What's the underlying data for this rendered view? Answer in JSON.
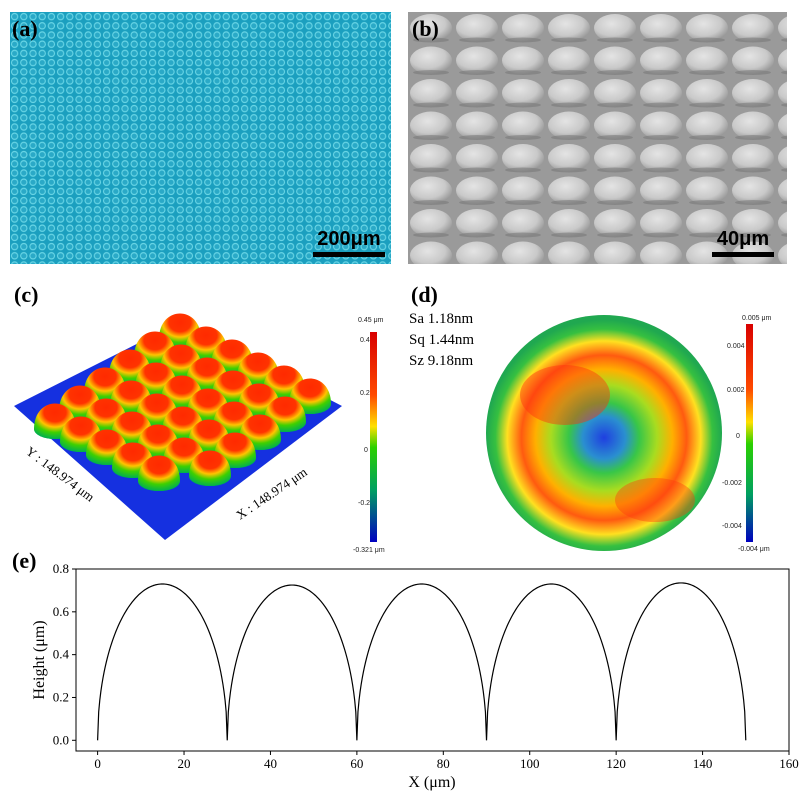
{
  "figure": {
    "panel_labels": [
      "(a)",
      "(b)",
      "(c)",
      "(d)",
      "(e)"
    ],
    "panel_a": {
      "scale_bar": "200μm",
      "colors": {
        "bg": "#21a5c4",
        "dot": "#7ce1ee"
      }
    },
    "panel_b": {
      "scale_bar": "40μm"
    },
    "panel_c": {
      "x_label": "X : 148.974 μm",
      "y_label": "Y : 148.974 μm",
      "colorbar": {
        "top": "0.45 μm",
        "ticks": [
          "0.4",
          "0.2",
          "0",
          "-0.2"
        ],
        "bottom": "-0.321 μm"
      }
    },
    "panel_d": {
      "roughness": [
        "Sa 1.18nm",
        "Sq 1.44nm",
        "Sz 9.18nm"
      ],
      "colorbar": {
        "top": "0.005 μm",
        "ticks": [
          "0.004",
          "0.002",
          "0",
          "-0.002",
          "-0.004"
        ],
        "bottom": "-0.004 μm"
      }
    }
  },
  "chart_data": {
    "type": "line",
    "xlabel": "X (μm)",
    "ylabel": "Height (μm)",
    "xlim": [
      -5,
      160
    ],
    "ylim": [
      -0.05,
      0.8
    ],
    "x_ticks": [
      "0",
      "20",
      "40",
      "60",
      "80",
      "100",
      "120",
      "140",
      "160"
    ],
    "y_ticks": [
      "0.0",
      "0.2",
      "0.4",
      "0.6",
      "0.8"
    ],
    "series": [
      {
        "lens_centers": [
          15,
          45,
          75,
          105,
          135
        ],
        "lens_radius": 15,
        "peak_heights": [
          0.73,
          0.725,
          0.73,
          0.73,
          0.735
        ],
        "line_color": "#000000"
      }
    ]
  }
}
